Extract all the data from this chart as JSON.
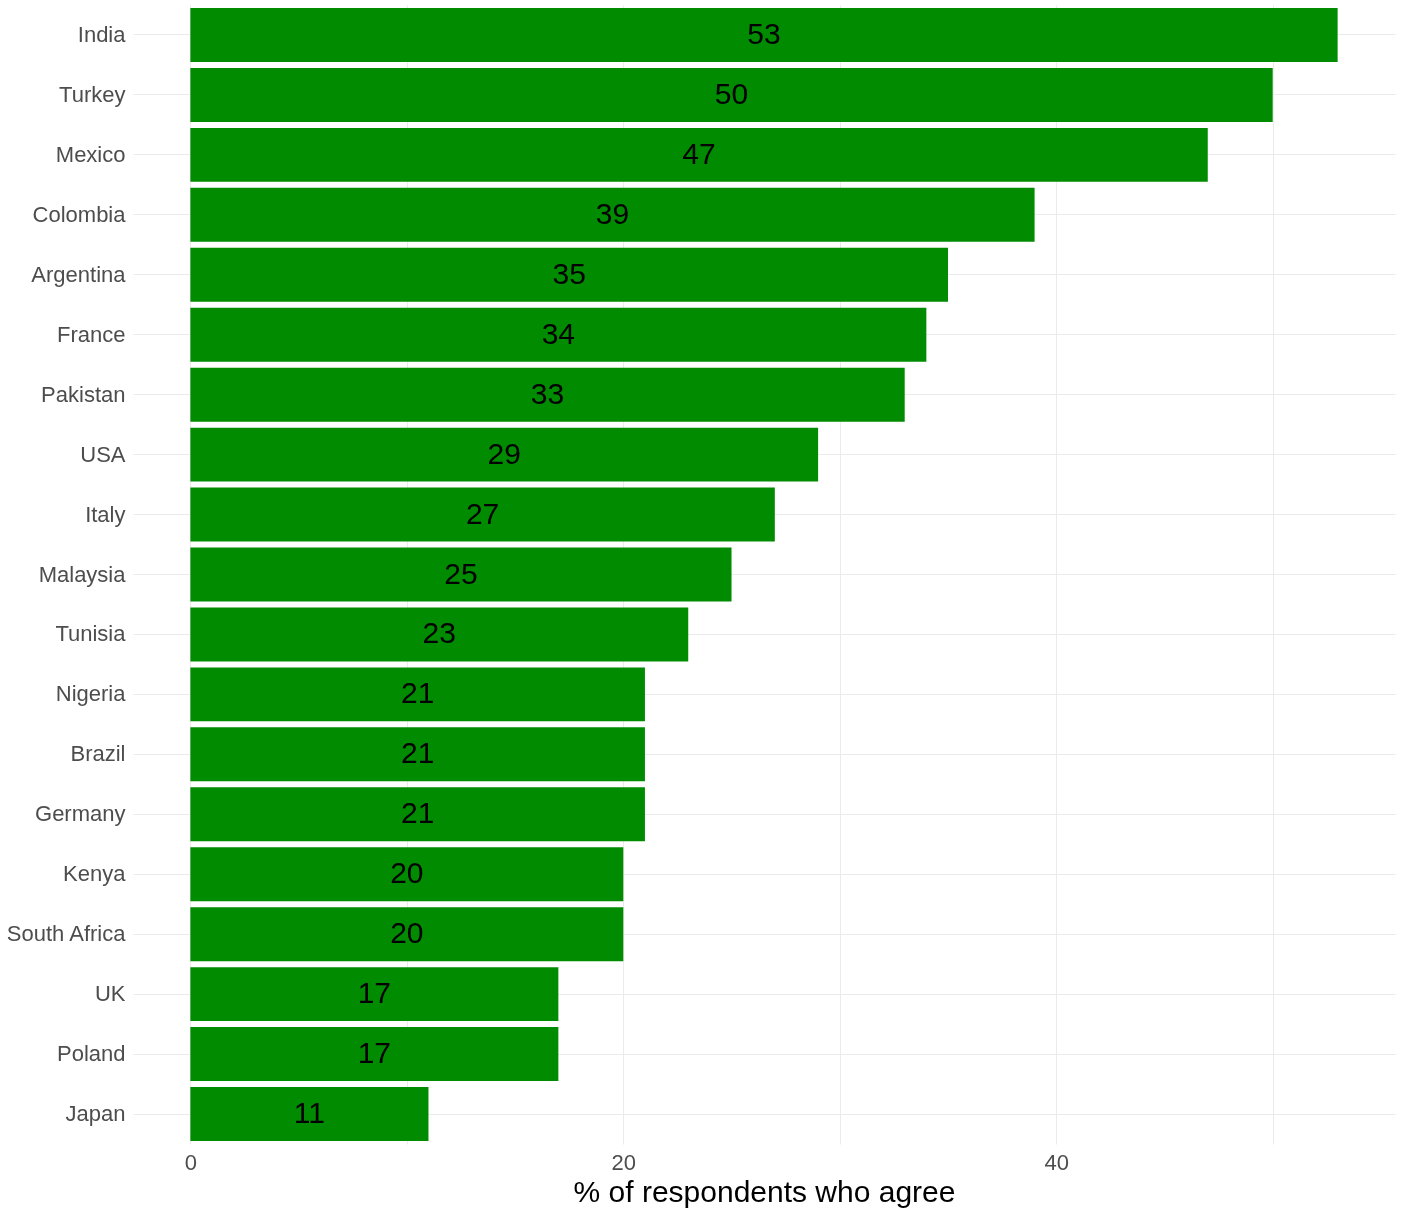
{
  "chart_data": {
    "type": "bar",
    "orientation": "horizontal",
    "xlabel": "% of respondents who agree",
    "categories": [
      "India",
      "Turkey",
      "Mexico",
      "Colombia",
      "Argentina",
      "France",
      "Pakistan",
      "USA",
      "Italy",
      "Malaysia",
      "Tunisia",
      "Nigeria",
      "Brazil",
      "Germany",
      "Kenya",
      "South Africa",
      "UK",
      "Poland",
      "Japan"
    ],
    "values": [
      53,
      50,
      47,
      39,
      35,
      34,
      33,
      29,
      27,
      25,
      23,
      21,
      21,
      21,
      20,
      20,
      17,
      17,
      11
    ],
    "color": "#008b00",
    "xlim": [
      -2.65,
      55.65
    ],
    "xticks": [
      0,
      {
        "value": 10,
        "label": null
      },
      20,
      {
        "value": 30,
        "label": null
      },
      40,
      {
        "value": 50,
        "label": null
      }
    ],
    "grid": true,
    "data_labels": true
  }
}
